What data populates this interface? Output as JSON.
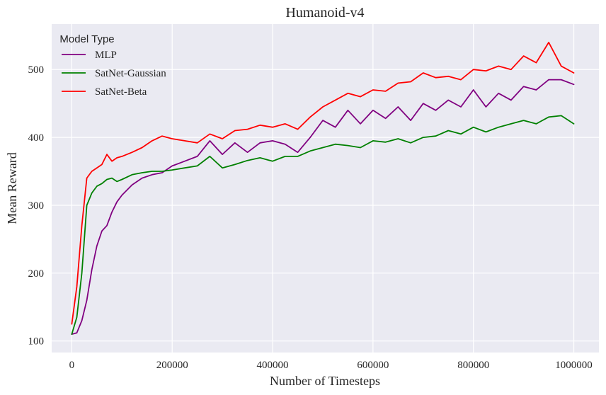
{
  "chart_data": {
    "type": "line",
    "title": "Humanoid-v4",
    "xlabel": "Number of Timesteps",
    "ylabel": "Mean Reward",
    "xlim": [
      -40000,
      1050000
    ],
    "ylim": [
      83,
      567
    ],
    "xticks": [
      0,
      200000,
      400000,
      600000,
      800000,
      1000000
    ],
    "xtick_labels": [
      "0",
      "200000",
      "400000",
      "600000",
      "800000",
      "1000000"
    ],
    "yticks": [
      100,
      200,
      300,
      400,
      500
    ],
    "ytick_labels": [
      "100",
      "200",
      "300",
      "400",
      "500"
    ],
    "grid": true,
    "legend_title": "Model Type",
    "legend_position": "upper-left",
    "background": "#eaeaf2",
    "series": [
      {
        "name": "MLP",
        "color": "#800080",
        "x": [
          0,
          10000,
          20000,
          30000,
          40000,
          50000,
          60000,
          70000,
          80000,
          90000,
          100000,
          120000,
          140000,
          160000,
          180000,
          200000,
          225000,
          250000,
          275000,
          300000,
          325000,
          350000,
          375000,
          400000,
          425000,
          450000,
          475000,
          500000,
          525000,
          550000,
          575000,
          600000,
          625000,
          650000,
          675000,
          700000,
          725000,
          750000,
          775000,
          800000,
          825000,
          850000,
          875000,
          900000,
          925000,
          950000,
          975000,
          1000000
        ],
        "y": [
          110,
          112,
          130,
          160,
          205,
          240,
          262,
          270,
          290,
          305,
          315,
          330,
          340,
          345,
          348,
          358,
          365,
          372,
          395,
          375,
          392,
          378,
          392,
          395,
          390,
          378,
          400,
          425,
          415,
          440,
          420,
          440,
          428,
          445,
          425,
          450,
          440,
          455,
          445,
          470,
          445,
          465,
          455,
          475,
          470,
          485,
          485,
          478
        ]
      },
      {
        "name": "SatNet-Gaussian",
        "color": "#008000",
        "x": [
          0,
          10000,
          20000,
          30000,
          40000,
          50000,
          60000,
          70000,
          80000,
          90000,
          100000,
          120000,
          140000,
          160000,
          180000,
          200000,
          225000,
          250000,
          275000,
          300000,
          325000,
          350000,
          375000,
          400000,
          425000,
          450000,
          475000,
          500000,
          525000,
          550000,
          575000,
          600000,
          625000,
          650000,
          675000,
          700000,
          725000,
          750000,
          775000,
          800000,
          825000,
          850000,
          875000,
          900000,
          925000,
          950000,
          975000,
          1000000
        ],
        "y": [
          110,
          135,
          200,
          300,
          318,
          328,
          332,
          338,
          340,
          335,
          338,
          345,
          348,
          350,
          350,
          352,
          355,
          358,
          372,
          355,
          360,
          366,
          370,
          365,
          372,
          372,
          380,
          385,
          390,
          388,
          385,
          395,
          393,
          398,
          392,
          400,
          402,
          410,
          405,
          415,
          408,
          415,
          420,
          425,
          420,
          430,
          432,
          420
        ]
      },
      {
        "name": "SatNet-Beta",
        "color": "#ff0000",
        "x": [
          0,
          10000,
          20000,
          30000,
          40000,
          50000,
          60000,
          70000,
          80000,
          90000,
          100000,
          120000,
          140000,
          160000,
          180000,
          200000,
          225000,
          250000,
          275000,
          300000,
          325000,
          350000,
          375000,
          400000,
          425000,
          450000,
          475000,
          500000,
          525000,
          550000,
          575000,
          600000,
          625000,
          650000,
          675000,
          700000,
          725000,
          750000,
          775000,
          800000,
          825000,
          850000,
          875000,
          900000,
          925000,
          950000,
          975000,
          1000000
        ],
        "y": [
          125,
          180,
          270,
          340,
          350,
          355,
          360,
          375,
          365,
          370,
          372,
          378,
          385,
          395,
          402,
          398,
          395,
          392,
          405,
          398,
          410,
          412,
          418,
          415,
          420,
          412,
          430,
          445,
          455,
          465,
          460,
          470,
          468,
          480,
          482,
          495,
          488,
          490,
          485,
          500,
          498,
          505,
          500,
          520,
          510,
          540,
          505,
          495
        ]
      }
    ]
  }
}
